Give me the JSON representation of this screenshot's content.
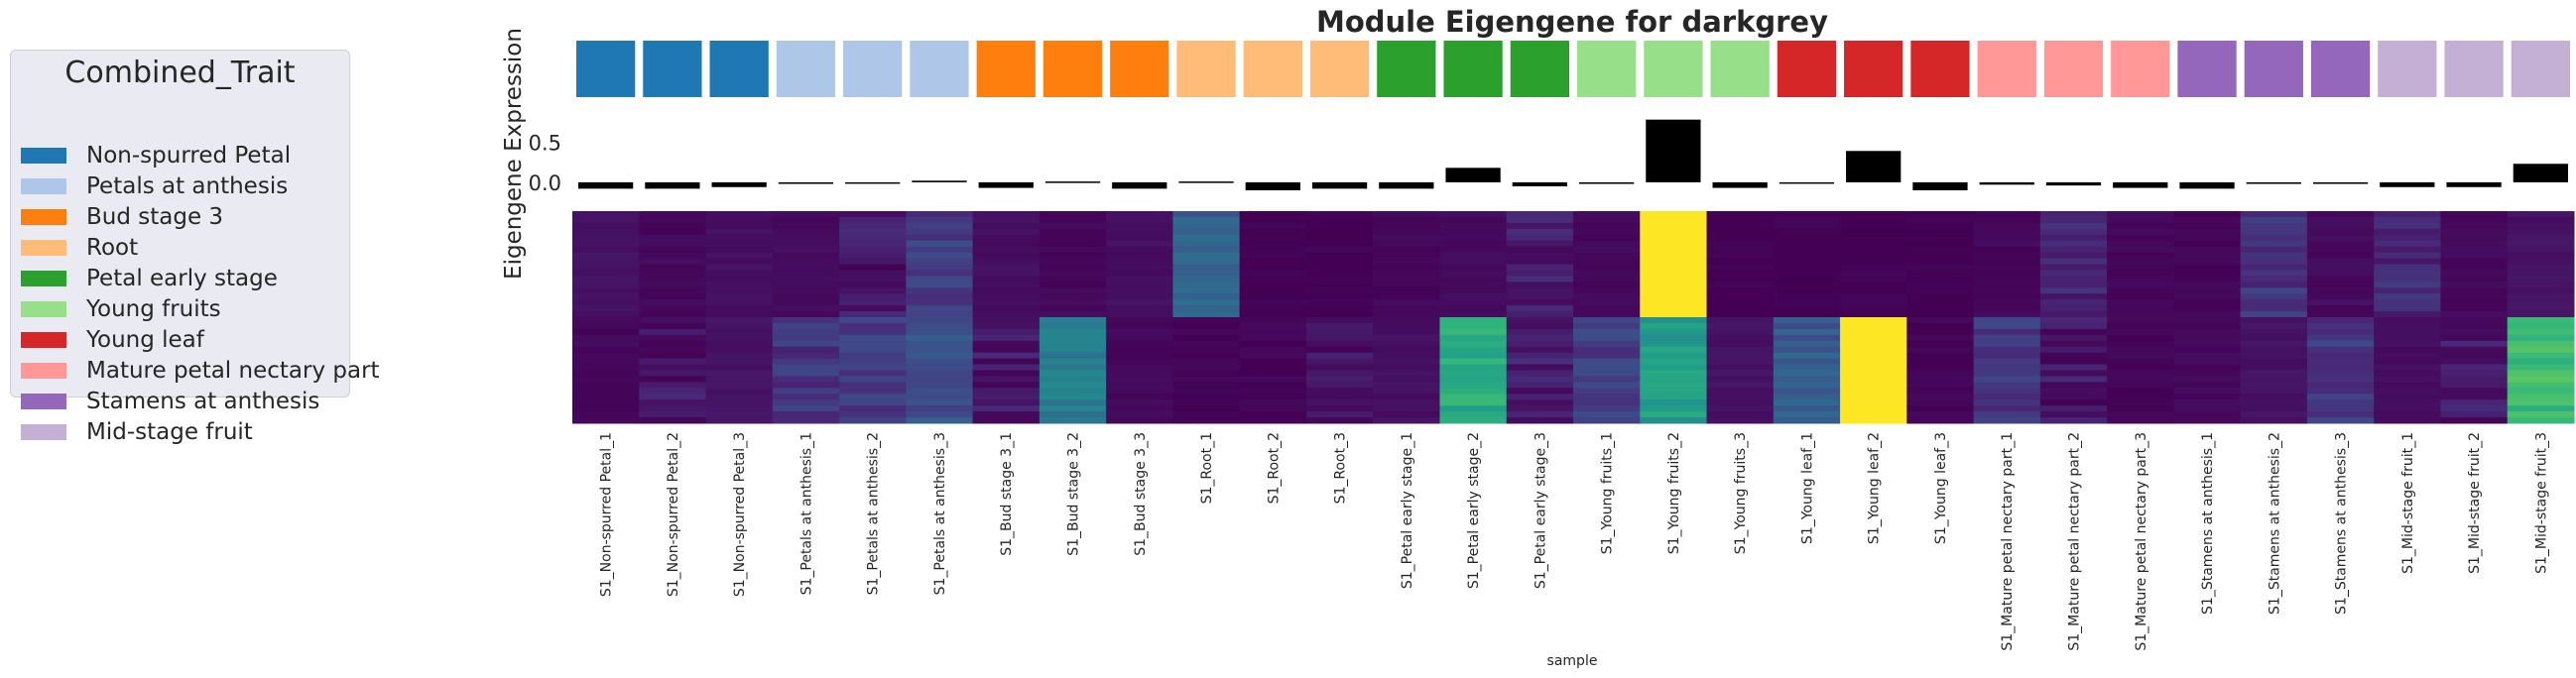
{
  "chart_data": {
    "type": "heatmap",
    "title": "Module Eigengene for darkgrey",
    "ylabel": "Eigengene Expression",
    "xlabel": "sample",
    "legend": {
      "title": "Combined_Trait",
      "placement": "left",
      "entries": [
        {
          "label": "Non-spurred Petal",
          "color": "#1f77b4"
        },
        {
          "label": "Petals at anthesis",
          "color": "#aec7e8"
        },
        {
          "label": "Bud stage 3",
          "color": "#ff7f0e"
        },
        {
          "label": "Root",
          "color": "#ffbb78"
        },
        {
          "label": "Petal early stage",
          "color": "#2ca02c"
        },
        {
          "label": "Young fruits",
          "color": "#98df8a"
        },
        {
          "label": "Young leaf",
          "color": "#d62728"
        },
        {
          "label": "Mature petal nectary part",
          "color": "#ff9896"
        },
        {
          "label": "Stamens at anthesis",
          "color": "#9467bd"
        },
        {
          "label": "Mid-stage fruit",
          "color": "#c5b0d5"
        }
      ]
    },
    "bar_yticks": [
      "0.5",
      "0.0"
    ],
    "samples": [
      "S1_Non-spurred Petal_1",
      "S1_Non-spurred Petal_2",
      "S1_Non-spurred Petal_3",
      "S1_Petals at anthesis_1",
      "S1_Petals at anthesis_2",
      "S1_Petals at anthesis_3",
      "S1_Bud stage 3_1",
      "S1_Bud stage 3_2",
      "S1_Bud stage 3_3",
      "S1_Root_1",
      "S1_Root_2",
      "S1_Root_3",
      "S1_Petal early stage_1",
      "S1_Petal early stage_2",
      "S1_Petal early stage_3",
      "S1_Young fruits_1",
      "S1_Young fruits_2",
      "S1_Young fruits_3",
      "S1_Young leaf_1",
      "S1_Young leaf_2",
      "S1_Young leaf_3",
      "S1_Mature petal nectary part_1",
      "S1_Mature petal nectary part_2",
      "S1_Mature petal nectary part_3",
      "S1_Stamens at anthesis_1",
      "S1_Stamens at anthesis_2",
      "S1_Stamens at anthesis_3",
      "S1_Mid-stage fruit_1",
      "S1_Mid-stage fruit_2",
      "S1_Mid-stage fruit_3"
    ],
    "sample_trait_index": [
      0,
      0,
      0,
      1,
      1,
      1,
      2,
      2,
      2,
      3,
      3,
      3,
      4,
      4,
      4,
      5,
      5,
      5,
      6,
      6,
      6,
      7,
      7,
      7,
      8,
      8,
      8,
      9,
      9,
      9
    ],
    "eigengene_values": [
      -0.08,
      -0.08,
      -0.06,
      -0.02,
      0.0,
      0.02,
      -0.07,
      0.01,
      -0.08,
      0.01,
      -0.1,
      -0.08,
      -0.08,
      0.18,
      -0.05,
      -0.02,
      0.78,
      -0.07,
      0.0,
      0.39,
      -0.1,
      -0.03,
      -0.04,
      -0.07,
      -0.08,
      -0.02,
      -0.02,
      -0.06,
      -0.06,
      0.23
    ],
    "ylim": [
      -0.1,
      0.85
    ],
    "heatmap_rows": [
      [
        0.05,
        0.02,
        0.04,
        0.03,
        0.06,
        0.18,
        0.04,
        0.02,
        0.04,
        0.3,
        0.0,
        0.0,
        0.02,
        0.03,
        0.07,
        0.02,
        1.0,
        0.0,
        0.0,
        0.0,
        0.0,
        0.02,
        0.1,
        0.02,
        0.01,
        0.15,
        0.03,
        0.12,
        0.02,
        0.05
      ],
      [
        0.02,
        0.06,
        0.05,
        0.15,
        0.18,
        0.25,
        0.06,
        0.42,
        0.02,
        0.01,
        0.01,
        0.06,
        0.04,
        0.62,
        0.08,
        0.18,
        0.55,
        0.05,
        0.28,
        1.0,
        0.01,
        0.16,
        0.06,
        0.01,
        0.02,
        0.05,
        0.16,
        0.03,
        0.07,
        0.68
      ]
    ]
  }
}
